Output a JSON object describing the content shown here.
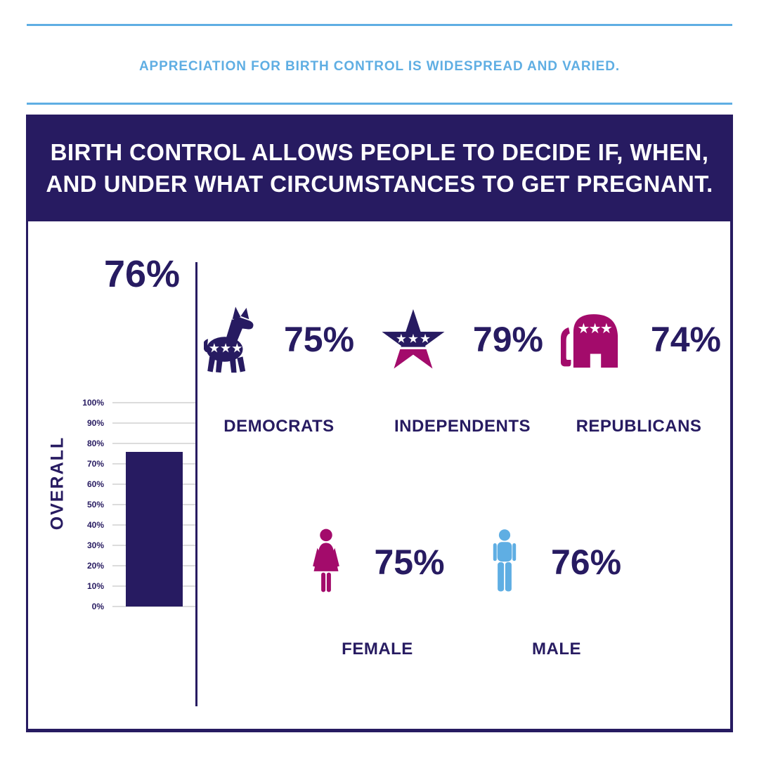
{
  "kicker": "APPRECIATION FOR BIRTH CONTROL IS WIDESPREAD AND VARIED.",
  "banner": {
    "line1": "BIRTH CONTROL ALLOWS PEOPLE TO DECIDE IF, WHEN,",
    "line2": "AND UNDER WHAT CIRCUMSTANCES TO GET PREGNANT."
  },
  "colors": {
    "navy": "#271B61",
    "magenta": "#A30B6B",
    "light_blue": "#5FAEE3",
    "grid": "#DCDCDC"
  },
  "chart_data": {
    "type": "bar",
    "categories": [
      "OVERALL"
    ],
    "values": [
      76
    ],
    "value_label": "76%",
    "tick_labels": [
      "100%",
      "90%",
      "80%",
      "70%",
      "60%",
      "50%",
      "40%",
      "30%",
      "20%",
      "10%",
      "0%"
    ],
    "ylim": [
      0,
      100
    ],
    "grid": true,
    "bar_color": "#271B61",
    "legend": "none"
  },
  "groups": [
    {
      "id": "democrats",
      "label": "DEMOCRATS",
      "value": "75%",
      "icon": "democrat-donkey-icon"
    },
    {
      "id": "independents",
      "label": "INDEPENDENTS",
      "value": "79%",
      "icon": "independent-star-icon"
    },
    {
      "id": "republicans",
      "label": "REPUBLICANS",
      "value": "74%",
      "icon": "republican-elephant-icon"
    },
    {
      "id": "female",
      "label": "FEMALE",
      "value": "75%",
      "icon": "female-icon"
    },
    {
      "id": "male",
      "label": "MALE",
      "value": "76%",
      "icon": "male-icon"
    }
  ]
}
